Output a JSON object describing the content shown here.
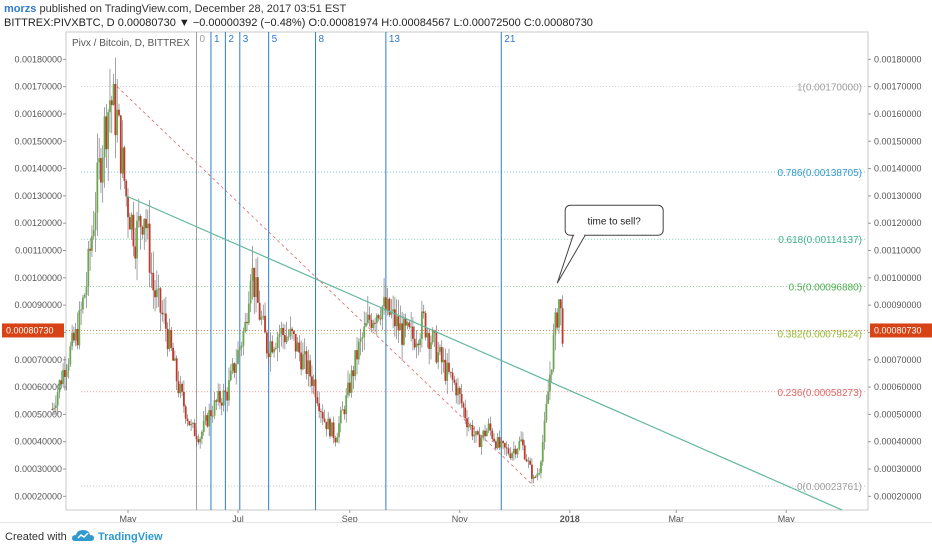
{
  "header": {
    "user": "morzs",
    "published": "published on TradingView.com, December 28, 2017 03:51 EST",
    "symbol": "BITTREX:PIVXBTC, D",
    "close_val": "0.00080730",
    "change": "▼ −0.00000392 (−0.48%)",
    "o_label": "O:",
    "o_val": "0.00081974",
    "h_label": "H:",
    "h_val": "0.00084567",
    "l_label": "L:",
    "l_val": "0.00072500",
    "c_label": "C:",
    "c_val": "0.00080730"
  },
  "footer": {
    "created_with": "Created with",
    "brand": "TradingView"
  },
  "colors": {
    "up": "#6aa84f",
    "down": "#c0392b",
    "cycle": "#2e7bcf",
    "trend": "#62b89a",
    "price_tag": "#d84315"
  },
  "chart_data": {
    "type": "candlestick",
    "title": "Pivx / Bitcoin, D, BITTREX",
    "ylim": [
      0.00015,
      0.0019
    ],
    "yticks": [
      "0.00020000",
      "0.00030000",
      "0.00040000",
      "0.00050000",
      "0.00060000",
      "0.00070000",
      "0.00080000",
      "0.00090000",
      "0.00100000",
      "0.00110000",
      "0.00120000",
      "0.00130000",
      "0.00140000",
      "0.00150000",
      "0.00160000",
      "0.00170000",
      "0.00180000"
    ],
    "xticks": [
      {
        "label": "May",
        "date": "2017-05-01"
      },
      {
        "label": "Jul",
        "date": "2017-07-01"
      },
      {
        "label": "Sep",
        "date": "2017-09-01"
      },
      {
        "label": "Nov",
        "date": "2017-11-01"
      },
      {
        "label": "2018",
        "date": "2018-01-01"
      },
      {
        "label": "Mar",
        "date": "2018-03-01"
      },
      {
        "label": "May",
        "date": "2018-05-01"
      }
    ],
    "last_price": "0.00080730",
    "price_path": [
      [
        "2017-03-20",
        0.00052
      ],
      [
        "2017-03-27",
        0.00068
      ],
      [
        "2017-04-03",
        0.0008
      ],
      [
        "2017-04-08",
        0.00098
      ],
      [
        "2017-04-13",
        0.00128
      ],
      [
        "2017-04-17",
        0.0015
      ],
      [
        "2017-04-21",
        0.00166
      ],
      [
        "2017-04-25",
        0.00158
      ],
      [
        "2017-04-30",
        0.0013
      ],
      [
        "2017-05-05",
        0.00115
      ],
      [
        "2017-05-10",
        0.00125
      ],
      [
        "2017-05-15",
        0.00096
      ],
      [
        "2017-05-22",
        0.00082
      ],
      [
        "2017-05-29",
        0.0006
      ],
      [
        "2017-06-05",
        0.00045
      ],
      [
        "2017-06-10",
        0.00042
      ],
      [
        "2017-06-15",
        0.0005
      ],
      [
        "2017-06-20",
        0.00055
      ],
      [
        "2017-06-25",
        0.00058
      ],
      [
        "2017-06-30",
        0.0007
      ],
      [
        "2017-07-05",
        0.00082
      ],
      [
        "2017-07-08",
        0.00105
      ],
      [
        "2017-07-12",
        0.0009
      ],
      [
        "2017-07-17",
        0.00075
      ],
      [
        "2017-07-24",
        0.0008
      ],
      [
        "2017-07-31",
        0.00078
      ],
      [
        "2017-08-06",
        0.0007
      ],
      [
        "2017-08-12",
        0.00062
      ],
      [
        "2017-08-18",
        0.00048
      ],
      [
        "2017-08-24",
        0.00042
      ],
      [
        "2017-08-30",
        0.00055
      ],
      [
        "2017-09-05",
        0.00072
      ],
      [
        "2017-09-12",
        0.00085
      ],
      [
        "2017-09-18",
        0.0009
      ],
      [
        "2017-09-24",
        0.00086
      ],
      [
        "2017-09-30",
        0.0008
      ],
      [
        "2017-10-06",
        0.00078
      ],
      [
        "2017-10-12",
        0.00084
      ],
      [
        "2017-10-18",
        0.00075
      ],
      [
        "2017-10-24",
        0.00066
      ],
      [
        "2017-10-30",
        0.0006
      ],
      [
        "2017-11-05",
        0.00048
      ],
      [
        "2017-11-11",
        0.0004
      ],
      [
        "2017-11-17",
        0.00045
      ],
      [
        "2017-11-23",
        0.00038
      ],
      [
        "2017-11-29",
        0.00036
      ],
      [
        "2017-12-05",
        0.0004
      ],
      [
        "2017-12-09",
        0.00032
      ],
      [
        "2017-12-12",
        0.00026
      ],
      [
        "2017-12-15",
        0.0003
      ],
      [
        "2017-12-18",
        0.00045
      ],
      [
        "2017-12-21",
        0.00065
      ],
      [
        "2017-12-24",
        0.00082
      ],
      [
        "2017-12-26",
        0.00092
      ],
      [
        "2017-12-28",
        0.00081
      ]
    ],
    "cycle_lines": [
      {
        "label": "0",
        "date": "2017-06-08",
        "color": "#9e9e9e"
      },
      {
        "label": "1",
        "date": "2017-06-16"
      },
      {
        "label": "2",
        "date": "2017-06-24"
      },
      {
        "label": "3",
        "date": "2017-07-02"
      },
      {
        "label": "5",
        "date": "2017-07-18"
      },
      {
        "label": "8",
        "date": "2017-08-13"
      },
      {
        "label": "13",
        "date": "2017-09-21"
      },
      {
        "label": "21",
        "date": "2017-11-24"
      }
    ],
    "fib_levels": [
      {
        "label": "1(0.00170000)",
        "value": 0.0017,
        "color": "#9e9e9e"
      },
      {
        "label": "0.786(0.00138705)",
        "value": 0.00138705,
        "color": "#2e9ad0"
      },
      {
        "label": "0.618(0.00114137)",
        "value": 0.00114137,
        "color": "#41b38a"
      },
      {
        "label": "0.5(0.00096880)",
        "value": 0.0009688,
        "color": "#4caf50"
      },
      {
        "label": "0.382(0.00079624)",
        "value": 0.00079624,
        "color": "#9ab833"
      },
      {
        "label": "0.236(0.00058273)",
        "value": 0.00058273,
        "color": "#e06666"
      },
      {
        "label": "0(0.00023761)",
        "value": 0.00023761,
        "color": "#9e9e9e"
      }
    ],
    "trendline": {
      "from": [
        "2017-04-30",
        0.0013
      ],
      "to": [
        "2018-06-01",
        0.00015
      ]
    },
    "fib_diagonal": {
      "from": [
        "2017-04-25",
        0.0017
      ],
      "to": [
        "2017-12-12",
        0.00023761
      ]
    },
    "annotation": {
      "text": "time to sell?",
      "anchor": [
        "2017-12-25",
        0.00098
      ]
    }
  }
}
